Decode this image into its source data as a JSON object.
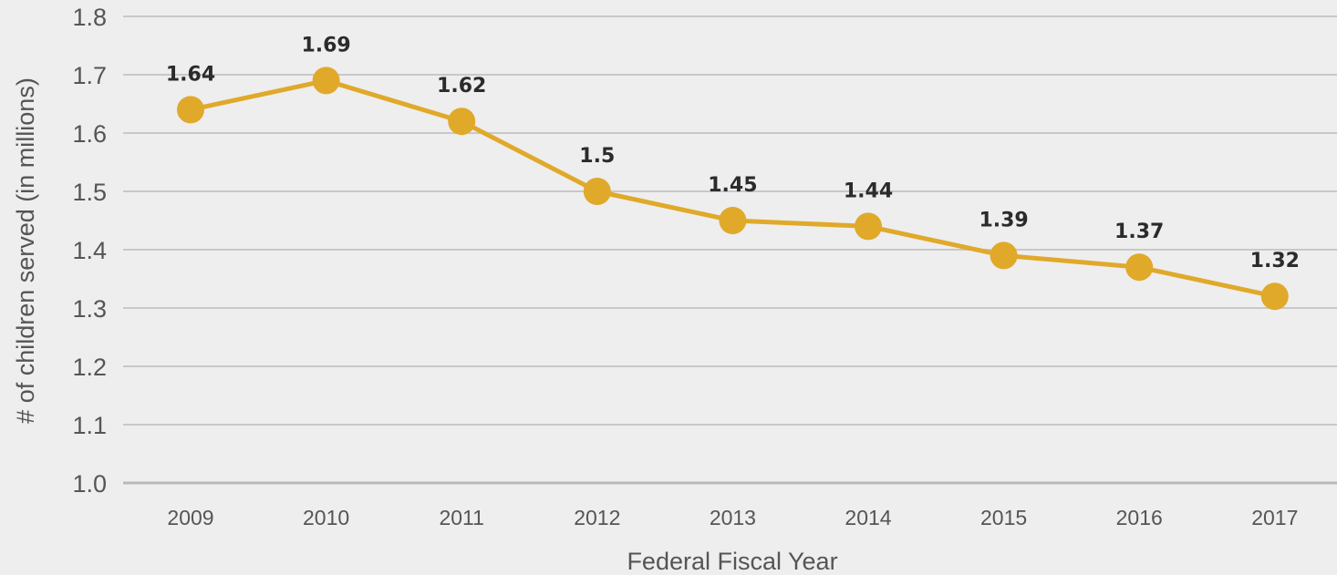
{
  "chart_data": {
    "type": "line",
    "title": "",
    "xlabel": "Federal Fiscal Year",
    "ylabel": "# of children served (in millions)",
    "ylim": [
      1.0,
      1.8
    ],
    "grid": true,
    "y_ticks": [
      "1.0",
      "1.1",
      "1.2",
      "1.3",
      "1.4",
      "1.5",
      "1.6",
      "1.7",
      "1.8"
    ],
    "categories": [
      "2009",
      "2010",
      "2011",
      "2012",
      "2013",
      "2014",
      "2015",
      "2016",
      "2017"
    ],
    "series": [
      {
        "values": [
          1.64,
          1.69,
          1.62,
          1.5,
          1.45,
          1.44,
          1.39,
          1.37,
          1.32
        ],
        "labels": [
          "1.64",
          "1.69",
          "1.62",
          "1.5",
          "1.45",
          "1.44",
          "1.39",
          "1.37",
          "1.32"
        ],
        "color": "#e0a92a"
      }
    ]
  }
}
